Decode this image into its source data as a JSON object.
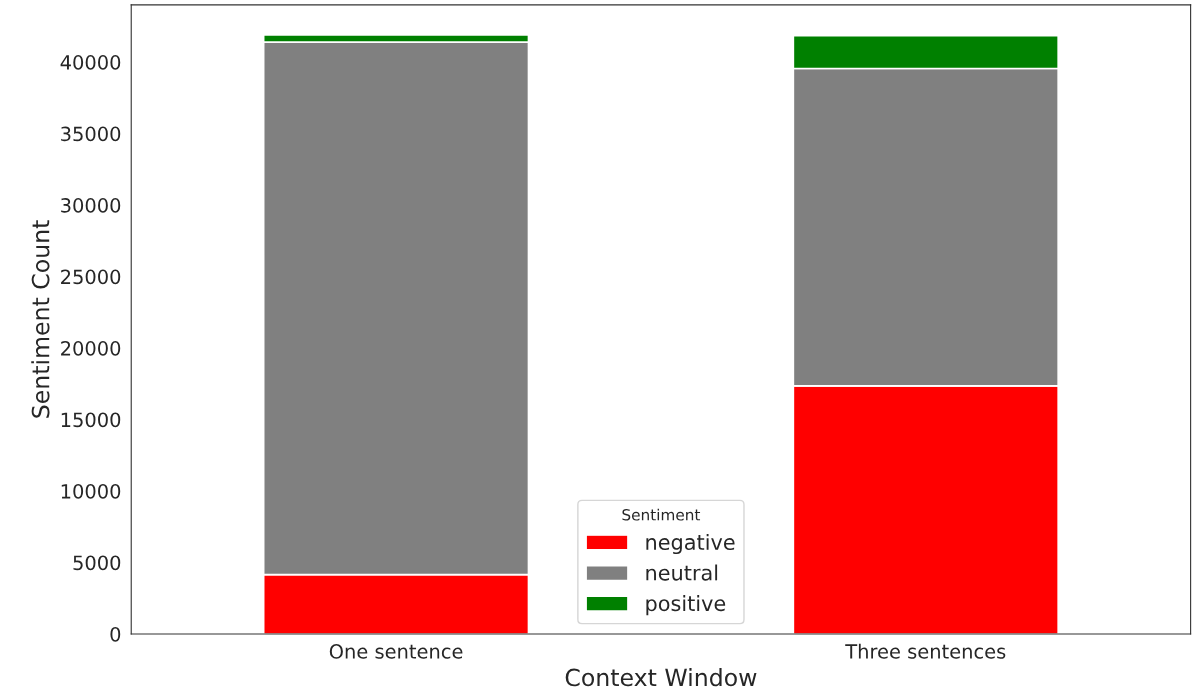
{
  "chart_data": {
    "type": "bar",
    "stacked": true,
    "xlabel": "Context Window",
    "ylabel": "Sentiment Count",
    "legend_title": "Sentiment",
    "categories": [
      "One sentence",
      "Three sentences"
    ],
    "series": [
      {
        "name": "negative",
        "color": "#ff0000",
        "values": [
          4150,
          17350
        ]
      },
      {
        "name": "neutral",
        "color": "#808080",
        "values": [
          37250,
          22200
        ]
      },
      {
        "name": "positive",
        "color": "#008000",
        "values": [
          500,
          2300
        ]
      }
    ],
    "ylim": [
      0,
      44000
    ],
    "yticks": [
      0,
      5000,
      10000,
      15000,
      20000,
      25000,
      30000,
      35000,
      40000
    ],
    "grid": false,
    "legend": "bottom"
  }
}
